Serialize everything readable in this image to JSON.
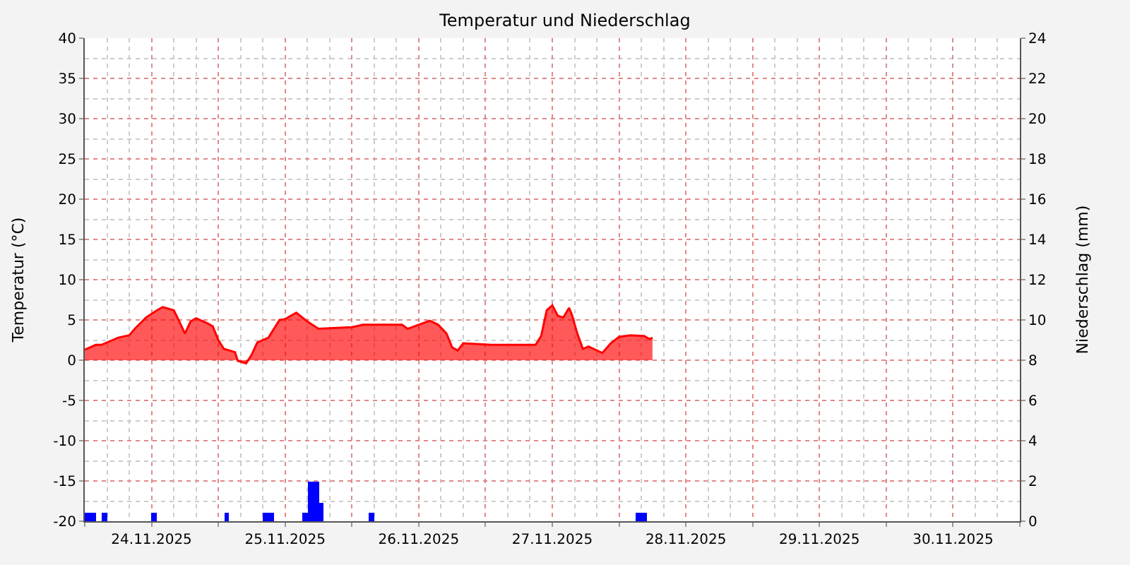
{
  "chart_data": {
    "type": "area",
    "title": "Temperatur und Niederschlag",
    "ylabel": "Temperatur (°C)",
    "y2label": "Niederschlag (mm)",
    "xlim": [
      "2025-11-24T00:00",
      "2025-12-01T00:00"
    ],
    "xticks": [
      {
        "value": "2025-11-24T00:00",
        "label": null
      },
      {
        "value": "2025-11-24T12:00",
        "label": "24.11.2025"
      },
      {
        "value": "2025-11-25T00:00",
        "label": null
      },
      {
        "value": "2025-11-25T12:00",
        "label": "25.11.2025"
      },
      {
        "value": "2025-11-26T00:00",
        "label": null
      },
      {
        "value": "2025-11-26T12:00",
        "label": "26.11.2025"
      },
      {
        "value": "2025-11-27T00:00",
        "label": null
      },
      {
        "value": "2025-11-27T12:00",
        "label": "27.11.2025"
      },
      {
        "value": "2025-11-28T00:00",
        "label": null
      },
      {
        "value": "2025-11-28T12:00",
        "label": "28.11.2025"
      },
      {
        "value": "2025-11-29T00:00",
        "label": null
      },
      {
        "value": "2025-11-29T12:00",
        "label": "29.11.2025"
      },
      {
        "value": "2025-11-30T00:00",
        "label": null
      },
      {
        "value": "2025-11-30T12:00",
        "label": "30.11.2025"
      },
      {
        "value": "2025-12-01T00:00",
        "label": null
      }
    ],
    "ylim": [
      -20,
      40
    ],
    "yticks": [
      -20,
      -15,
      -10,
      -5,
      0,
      5,
      10,
      15,
      20,
      25,
      30,
      35,
      40
    ],
    "y2lim": [
      0,
      24
    ],
    "y2ticks": [
      0,
      2,
      4,
      6,
      8,
      10,
      12,
      14,
      16,
      18,
      20,
      22,
      24
    ],
    "grid": true,
    "marker": "none",
    "series": [
      {
        "axis": "y",
        "color": "#ff0000",
        "x": [
          "2025-11-24T00:00",
          "2025-11-24T02:00",
          "2025-11-24T03:00",
          "2025-11-24T06:00",
          "2025-11-24T08:00",
          "2025-11-24T09:00",
          "2025-11-24T11:00",
          "2025-11-24T13:00",
          "2025-11-24T14:00",
          "2025-11-24T16:00",
          "2025-11-24T17:00",
          "2025-11-24T18:00",
          "2025-11-24T19:00",
          "2025-11-24T20:00",
          "2025-11-24T22:00",
          "2025-11-24T23:00",
          "2025-11-25T00:00",
          "2025-11-25T01:00",
          "2025-11-25T03:00",
          "2025-11-25T03:30",
          "2025-11-25T05:00",
          "2025-11-25T06:00",
          "2025-11-25T07:00",
          "2025-11-25T09:00",
          "2025-11-25T11:00",
          "2025-11-25T12:00",
          "2025-11-25T14:00",
          "2025-11-25T16:00",
          "2025-11-25T18:00",
          "2025-11-26T00:00",
          "2025-11-26T02:00",
          "2025-11-26T09:00",
          "2025-11-26T10:00",
          "2025-11-26T12:00",
          "2025-11-26T14:00",
          "2025-11-26T15:30",
          "2025-11-26T17:00",
          "2025-11-26T18:00",
          "2025-11-26T19:00",
          "2025-11-26T20:00",
          "2025-11-27T01:00",
          "2025-11-27T09:00",
          "2025-11-27T10:00",
          "2025-11-27T11:00",
          "2025-11-27T12:00",
          "2025-11-27T13:00",
          "2025-11-27T14:00",
          "2025-11-27T15:00",
          "2025-11-27T15:30",
          "2025-11-27T16:30",
          "2025-11-27T17:30",
          "2025-11-27T18:30",
          "2025-11-27T21:00",
          "2025-11-27T22:30",
          "2025-11-28T00:00",
          "2025-11-28T02:00",
          "2025-11-28T04:30",
          "2025-11-28T05:30",
          "2025-11-28T06:00"
        ],
        "values": [
          1.3,
          1.9,
          1.9,
          2.8,
          3.1,
          3.9,
          5.3,
          6.2,
          6.6,
          6.2,
          4.8,
          3.3,
          4.8,
          5.2,
          4.6,
          4.2,
          2.5,
          1.4,
          1.0,
          -0.1,
          -0.4,
          0.7,
          2.2,
          2.8,
          5.0,
          5.1,
          5.9,
          4.8,
          3.9,
          4.1,
          4.4,
          4.4,
          3.9,
          4.4,
          4.9,
          4.4,
          3.3,
          1.6,
          1.2,
          2.1,
          1.9,
          1.9,
          3.0,
          6.2,
          6.8,
          5.5,
          5.3,
          6.5,
          5.7,
          3.3,
          1.4,
          1.7,
          0.9,
          2.1,
          2.9,
          3.1,
          3.0,
          2.6,
          2.8
        ]
      },
      {
        "type": "bar",
        "axis": "y2",
        "color": "#0000ff",
        "x": [
          "2025-11-24T00:30",
          "2025-11-24T01:30",
          "2025-11-24T03:30",
          "2025-11-24T12:30",
          "2025-11-25T01:30",
          "2025-11-25T08:30",
          "2025-11-25T09:30",
          "2025-11-25T15:30",
          "2025-11-25T16:30",
          "2025-11-25T17:30",
          "2025-11-25T18:30",
          "2025-11-26T03:30",
          "2025-11-28T03:30",
          "2025-11-28T04:30"
        ],
        "values": [
          0.4,
          0.4,
          0.4,
          0.4,
          0.4,
          0.4,
          0.4,
          0.4,
          2.0,
          2.0,
          0.9,
          0.4,
          0.4,
          0.4
        ]
      }
    ]
  }
}
